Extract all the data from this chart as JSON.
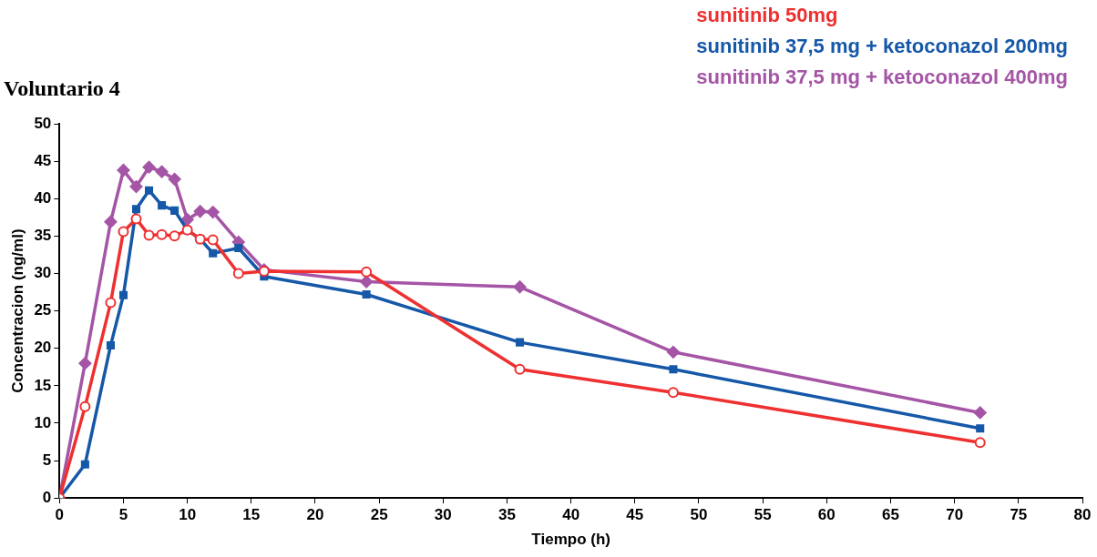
{
  "chart_data": {
    "type": "line",
    "title": "Voluntario 4",
    "xlabel": "Tiempo (h)",
    "ylabel": "Concentracion (ng/ml)",
    "xlim": [
      0,
      80
    ],
    "xticks": [
      0,
      5,
      10,
      15,
      20,
      25,
      30,
      35,
      40,
      45,
      50,
      55,
      60,
      65,
      70,
      75,
      80
    ],
    "ylim": [
      0,
      50
    ],
    "yticks": [
      0,
      5,
      10,
      15,
      20,
      25,
      30,
      35,
      40,
      45,
      50
    ],
    "x": [
      0,
      2,
      4,
      5,
      6,
      7,
      8,
      9,
      10,
      11,
      12,
      14,
      16,
      24,
      36,
      48,
      72
    ],
    "grid": false,
    "legend": "top right",
    "line_style": "solid",
    "series": [
      {
        "name": "sunitinib 50mg",
        "color": "#ee3030",
        "marker": "circle",
        "values": [
          0,
          12.2,
          26.1,
          35.6,
          37.3,
          35.1,
          35.2,
          35.0,
          35.8,
          34.6,
          34.5,
          30.0,
          30.3,
          30.2,
          17.2,
          14.1,
          7.4
        ]
      },
      {
        "name": "sunitinib 37,5 mg + ketoconazol 200mg",
        "color": "#1558a8",
        "marker": "square",
        "values": [
          0,
          4.5,
          20.4,
          27.1,
          38.6,
          41.1,
          39.1,
          38.4,
          35.8,
          34.6,
          32.7,
          33.4,
          29.6,
          27.2,
          20.8,
          17.2,
          9.3
        ]
      },
      {
        "name": "sunitinib 37,5 mg + ketoconazol 400mg",
        "color": "#a555a5",
        "marker": "diamond",
        "values": [
          0,
          18.0,
          36.9,
          43.8,
          41.6,
          44.2,
          43.6,
          42.6,
          37.2,
          38.3,
          38.2,
          34.2,
          30.5,
          28.9,
          28.2,
          19.5,
          11.4
        ]
      }
    ]
  }
}
